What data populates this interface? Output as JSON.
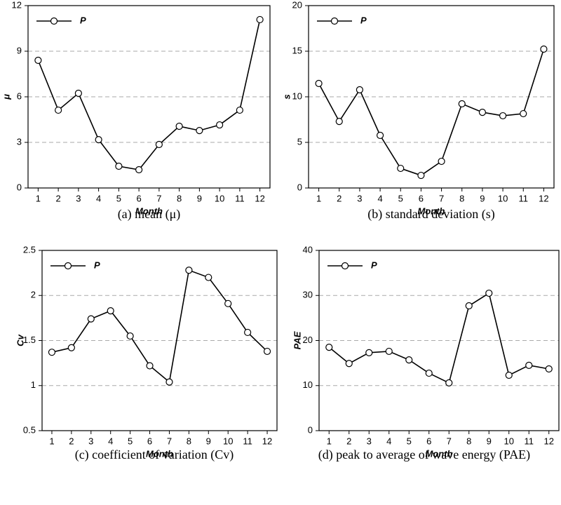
{
  "chart_data": [
    {
      "type": "line",
      "title": "(a) mean (μ)",
      "x_label": "Month",
      "y_label": "μ",
      "categories": [
        "1",
        "2",
        "3",
        "4",
        "5",
        "6",
        "7",
        "8",
        "9",
        "10",
        "11",
        "12"
      ],
      "series": [
        {
          "name": "P",
          "color": "#000000",
          "values": [
            8.4,
            5.12,
            6.23,
            3.18,
            1.43,
            1.2,
            2.86,
            4.06,
            3.78,
            4.15,
            5.12,
            11.08
          ]
        }
      ],
      "ylim": [
        0,
        12
      ],
      "yticks": [
        0,
        3,
        6,
        9,
        12
      ],
      "grid": true,
      "legend": "upper left"
    },
    {
      "type": "line",
      "title": "(b) standard deviation (s)",
      "x_label": "Month",
      "y_label": "s",
      "categories": [
        "1",
        "2",
        "3",
        "4",
        "5",
        "6",
        "7",
        "8",
        "9",
        "10",
        "11",
        "12"
      ],
      "series": [
        {
          "name": "P",
          "color": "#000000",
          "values": [
            11.46,
            7.3,
            10.77,
            5.77,
            2.15,
            1.38,
            2.92,
            9.23,
            8.3,
            7.92,
            8.15,
            15.23
          ]
        }
      ],
      "ylim": [
        0,
        20
      ],
      "yticks": [
        0,
        5,
        10,
        15,
        20
      ],
      "grid": true,
      "legend": "upper left"
    },
    {
      "type": "line",
      "title": "(c) coefficient of variation (Cv)",
      "x_label": "Month",
      "y_label": "Cv",
      "categories": [
        "1",
        "2",
        "3",
        "4",
        "5",
        "6",
        "7",
        "8",
        "9",
        "10",
        "11",
        "12"
      ],
      "series": [
        {
          "name": "P",
          "color": "#000000",
          "values": [
            1.37,
            1.42,
            1.74,
            1.83,
            1.55,
            1.22,
            1.04,
            2.28,
            2.2,
            1.91,
            1.59,
            1.38
          ]
        }
      ],
      "ylim": [
        0.5,
        2.5
      ],
      "yticks": [
        0.5,
        1,
        1.5,
        2,
        2.5
      ],
      "grid": true,
      "legend": "upper left"
    },
    {
      "type": "line",
      "title": "(d) peak to average of wave energy (PAE)",
      "x_label": "Month",
      "y_label": "PAE",
      "categories": [
        "1",
        "2",
        "3",
        "4",
        "5",
        "6",
        "7",
        "8",
        "9",
        "10",
        "11",
        "12"
      ],
      "series": [
        {
          "name": "P",
          "color": "#000000",
          "values": [
            18.5,
            14.9,
            17.3,
            17.6,
            15.7,
            12.75,
            10.6,
            27.7,
            30.5,
            12.3,
            14.5,
            13.7
          ]
        }
      ],
      "ylim": [
        0,
        40
      ],
      "yticks": [
        0,
        10,
        20,
        30,
        40
      ],
      "grid": true,
      "legend": "upper left"
    }
  ]
}
